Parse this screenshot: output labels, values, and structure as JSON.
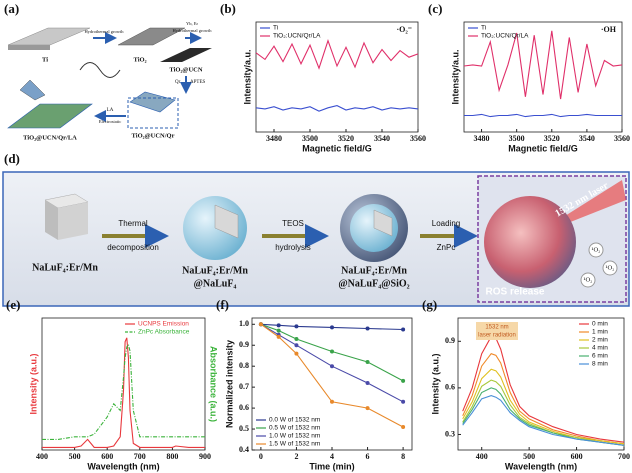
{
  "scheme_a": {
    "label": "(a)",
    "ti": "Ti",
    "step1": "Hydrothermal growth",
    "tio2": "TiO₂",
    "dopants": "Yb, Er",
    "step2": "Hydrothermal growth",
    "ucn": "TiO₂@UCN",
    "qr": "Qr",
    "aptes": "APTES",
    "ucn_qr": "TiO₂@UCN/Qr",
    "la": "LA",
    "step3": "Electrostatic",
    "final": "TiO₂@UCN/Qr/LA"
  },
  "scheme_d": {
    "label": "(d)",
    "core": "NaLuF₄:Er/Mn",
    "arrow1": [
      "Thermal",
      "decomposition"
    ],
    "core_shell": [
      "NaLuF₄:Er/Mn",
      "@NaLuF₄"
    ],
    "arrow2": [
      "TEOS",
      "hydrolysis"
    ],
    "silica": [
      "NaLuF₄:Er/Mn",
      "@NaLuF₄@SiO₂"
    ],
    "arrow3": [
      "Loading",
      "ZnPc"
    ],
    "laser": "1532 nm laser",
    "ros": "ROS release",
    "singlet_oxygen": [
      "¹O₂",
      "¹O₂",
      "¹O₂"
    ]
  },
  "chart_data": [
    {
      "type": "line",
      "label": "(b)",
      "xlabel": "Magnetic field/G",
      "ylabel": "Intensity/a.u.",
      "annotation": "·O₂⁻",
      "x": [
        3470,
        3475,
        3480,
        3485,
        3490,
        3495,
        3500,
        3505,
        3510,
        3515,
        3520,
        3525,
        3530,
        3535,
        3540,
        3545,
        3550,
        3555,
        3560
      ],
      "series": [
        {
          "name": "Ti",
          "color": "#3a4fd0",
          "values": [
            2.2,
            2.1,
            2.3,
            2.0,
            2.2,
            2.1,
            2.3,
            1.9,
            2.2,
            2.4,
            2.0,
            2.2,
            2.1,
            2.3,
            2.0,
            2.2,
            2.1,
            2.2,
            2.1
          ]
        },
        {
          "name": "TiO₂:UCN/Qr/LA",
          "color": "#e0306a",
          "values": [
            7.2,
            6.6,
            7.8,
            6.4,
            8.0,
            6.2,
            7.9,
            5.8,
            8.3,
            6.0,
            7.7,
            5.9,
            8.1,
            6.3,
            7.5,
            6.5,
            7.4,
            6.8,
            7.1
          ]
        }
      ],
      "xlim": [
        3470,
        3560
      ],
      "xticks": [
        3480,
        3500,
        3520,
        3540,
        3560
      ],
      "ylim": [
        0,
        10
      ],
      "legend": "upper left"
    },
    {
      "type": "line",
      "label": "(c)",
      "xlabel": "Magnetic field/G",
      "ylabel": "Intensity/a.u.",
      "annotation": "·OH",
      "x": [
        3470,
        3475,
        3480,
        3485,
        3490,
        3495,
        3500,
        3505,
        3510,
        3515,
        3520,
        3525,
        3530,
        3535,
        3540,
        3545,
        3550,
        3555,
        3560
      ],
      "series": [
        {
          "name": "Ti",
          "color": "#3a4fd0",
          "values": [
            1.5,
            1.5,
            1.6,
            1.4,
            1.5,
            1.5,
            1.6,
            1.4,
            1.5,
            1.5,
            1.6,
            1.4,
            1.5,
            1.5,
            1.6,
            1.5,
            1.5,
            1.5,
            1.5
          ]
        },
        {
          "name": "TiO₂:UCN/Qr/LA",
          "color": "#e0306a",
          "values": [
            6.0,
            6.1,
            6.0,
            8.2,
            3.8,
            6.1,
            9.0,
            3.2,
            8.8,
            3.4,
            9.2,
            3.0,
            8.6,
            3.6,
            8.0,
            4.2,
            6.5,
            6.0,
            6.1
          ]
        }
      ],
      "xlim": [
        3470,
        3560
      ],
      "xticks": [
        3480,
        3500,
        3520,
        3540,
        3560
      ],
      "ylim": [
        0,
        10
      ],
      "legend": "upper left"
    },
    {
      "type": "line",
      "label": "(e)",
      "xlabel": "Wavelength (nm)",
      "ylabel": "Intensity (a.u.)",
      "y2label": "Absorbance (a.u.)",
      "x": [
        400,
        450,
        500,
        520,
        540,
        550,
        560,
        600,
        620,
        640,
        650,
        655,
        660,
        665,
        670,
        680,
        700,
        750,
        800,
        810,
        850,
        900
      ],
      "series": [
        {
          "name": "UCNPS Emission",
          "color": "#e8383d",
          "values": [
            0.02,
            0.02,
            0.02,
            0.03,
            0.08,
            0.05,
            0.02,
            0.02,
            0.03,
            0.1,
            0.45,
            0.82,
            0.85,
            0.7,
            0.3,
            0.05,
            0.02,
            0.02,
            0.02,
            0.03,
            0.02,
            0.02
          ]
        },
        {
          "name": "ZnPc Absorbance",
          "color": "#3bb33b",
          "dash": true,
          "axis": "y2",
          "values": [
            0.08,
            0.08,
            0.1,
            0.1,
            0.1,
            0.11,
            0.12,
            0.25,
            0.35,
            0.3,
            0.55,
            0.7,
            0.78,
            0.8,
            0.75,
            0.3,
            0.1,
            0.1,
            0.1,
            0.1,
            0.1,
            0.1
          ]
        }
      ],
      "xlim": [
        400,
        900
      ],
      "xticks": [
        400,
        500,
        600,
        700,
        800,
        900
      ],
      "ylim": [
        0,
        1
      ],
      "y2lim": [
        0,
        1
      ],
      "legend": "upper right"
    },
    {
      "type": "line",
      "label": "(f)",
      "xlabel": "Time (min)",
      "ylabel": "Normalized intensity",
      "marker": true,
      "x": [
        0,
        1,
        2,
        4,
        6,
        8
      ],
      "series": [
        {
          "name": "0.0 W of 1532 nm",
          "color": "#2b3a8f",
          "values": [
            1.0,
            0.995,
            0.99,
            0.985,
            0.98,
            0.975
          ]
        },
        {
          "name": "0.5 W of 1532 nm",
          "color": "#3aa34a",
          "values": [
            1.0,
            0.97,
            0.93,
            0.87,
            0.82,
            0.73
          ]
        },
        {
          "name": "1.0 W of 1532 nm",
          "color": "#4a4aa8",
          "values": [
            1.0,
            0.95,
            0.9,
            0.8,
            0.72,
            0.63
          ]
        },
        {
          "name": "1.5 W of 1532 nm",
          "color": "#e8892b",
          "values": [
            1.0,
            0.94,
            0.86,
            0.63,
            0.6,
            0.51
          ]
        }
      ],
      "xlim": [
        -0.5,
        8.5
      ],
      "xticks": [
        0,
        2,
        4,
        6,
        8
      ],
      "ylim": [
        0.4,
        1.03
      ],
      "yticks": [
        0.4,
        0.5,
        0.6,
        0.7,
        0.8,
        0.9,
        {
          "value": 1,
          "label": "1.0"
        }
      ],
      "legend": "lower left"
    },
    {
      "type": "line",
      "label": "(g)",
      "xlabel": "Wavelength (nm)",
      "ylabel": "Intensity (a.u.)",
      "annotation": [
        "1532 nm",
        "laser radiation"
      ],
      "x": [
        360,
        380,
        400,
        420,
        430,
        440,
        460,
        480,
        500,
        550,
        600,
        650,
        700
      ],
      "series": [
        {
          "name": "0 min",
          "color": "#e8383d",
          "values": [
            0.45,
            0.6,
            0.82,
            0.93,
            0.92,
            0.85,
            0.62,
            0.48,
            0.42,
            0.35,
            0.3,
            0.27,
            0.25
          ]
        },
        {
          "name": "1 min",
          "color": "#f08a2a",
          "values": [
            0.42,
            0.55,
            0.74,
            0.82,
            0.81,
            0.76,
            0.57,
            0.45,
            0.4,
            0.33,
            0.29,
            0.26,
            0.24
          ]
        },
        {
          "name": "2 min",
          "color": "#e0c020",
          "values": [
            0.4,
            0.51,
            0.66,
            0.72,
            0.71,
            0.67,
            0.52,
            0.43,
            0.38,
            0.32,
            0.28,
            0.26,
            0.24
          ]
        },
        {
          "name": "4 min",
          "color": "#a8c83a",
          "values": [
            0.38,
            0.48,
            0.61,
            0.65,
            0.64,
            0.61,
            0.49,
            0.41,
            0.37,
            0.31,
            0.28,
            0.25,
            0.23
          ]
        },
        {
          "name": "6 min",
          "color": "#4ab070",
          "values": [
            0.37,
            0.46,
            0.57,
            0.6,
            0.59,
            0.56,
            0.46,
            0.4,
            0.36,
            0.31,
            0.27,
            0.25,
            0.23
          ]
        },
        {
          "name": "8 min",
          "color": "#4a90d8",
          "values": [
            0.36,
            0.44,
            0.53,
            0.55,
            0.54,
            0.52,
            0.44,
            0.39,
            0.35,
            0.3,
            0.27,
            0.25,
            0.23
          ]
        }
      ],
      "xlim": [
        350,
        700
      ],
      "xticks": [
        400,
        500,
        600,
        700
      ],
      "ylim": [
        0.2,
        1.05
      ],
      "yticks": [
        0.3,
        0.6,
        0.9
      ],
      "legend": "upper right"
    }
  ]
}
